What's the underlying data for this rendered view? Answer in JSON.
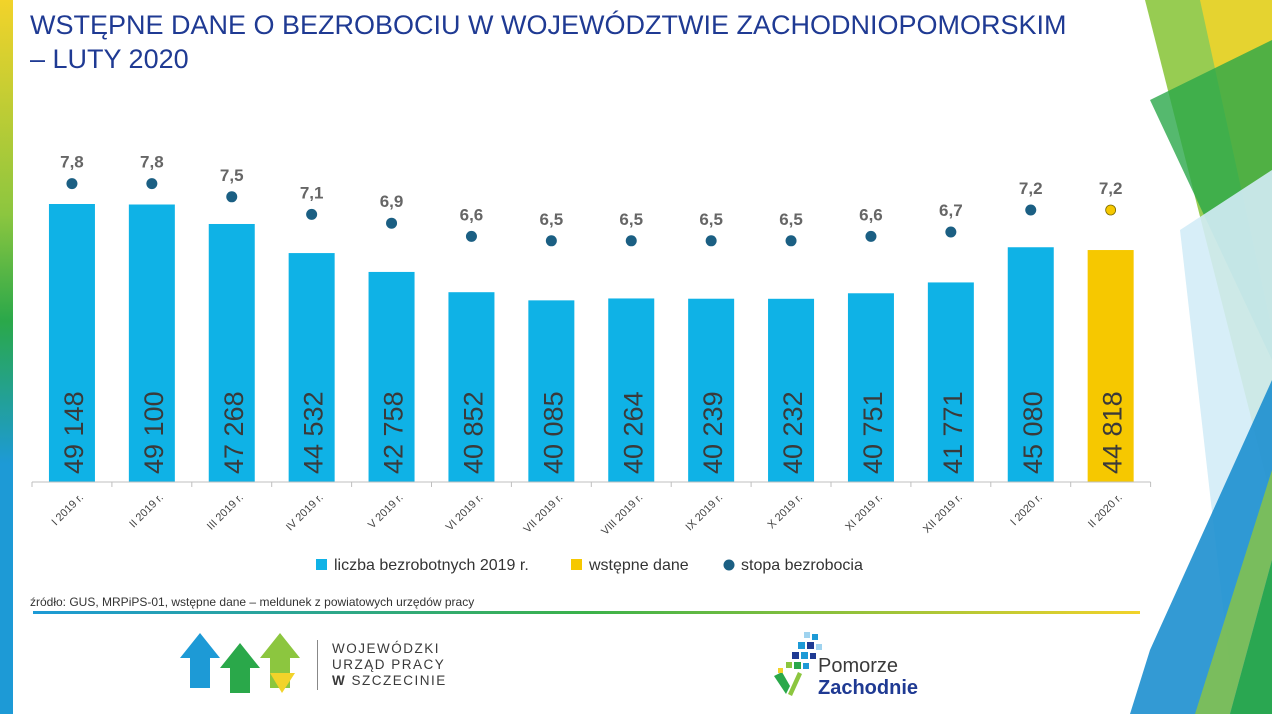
{
  "page": {
    "title_line1": "WSTĘPNE DANE O BEZROBOCIU W WOJEWÓDZTWIE ZACHODNIOPOMORSKIM",
    "title_line2": "– LUTY 2020",
    "source": "źródło: GUS, MRPiPS-01, wstępne dane – meldunek z powiatowych urzędów pracy"
  },
  "logos": {
    "wup_line1": "WOJEWÓDZKI",
    "wup_line2": "URZĄD PRACY",
    "wup_line3_w": "W",
    "wup_line3_rest": "SZCZECINIE",
    "pz_line1": "Pomorze",
    "pz_line2": "Zachodnie"
  },
  "colors": {
    "bar_2019": "#0fb2e6",
    "bar_preliminary": "#f6c800",
    "rate_dot": "#1b5f83",
    "rate_dot_preliminary": "#f6c800",
    "title": "#1f3a93",
    "label_gray": "#666666"
  },
  "chart_data": {
    "type": "bar",
    "categories": [
      "I 2019 r.",
      "II 2019 r.",
      "III 2019 r.",
      "IV 2019 r.",
      "V 2019 r.",
      "VI 2019 r.",
      "VII 2019 r.",
      "VIII 2019 r.",
      "IX 2019 r.",
      "X 2019 r.",
      "XI 2019 r.",
      "XII 2019 r.",
      "I 2020 r.",
      "II 2020 r."
    ],
    "series": [
      {
        "name": "liczba bezrobotnych 2019 r.",
        "kind": "bar",
        "values": [
          49148,
          49100,
          47268,
          44532,
          42758,
          40852,
          40085,
          40264,
          40239,
          40232,
          40751,
          41771,
          45080,
          null
        ]
      },
      {
        "name": "wstępne dane",
        "kind": "bar",
        "values": [
          null,
          null,
          null,
          null,
          null,
          null,
          null,
          null,
          null,
          null,
          null,
          null,
          null,
          44818
        ]
      },
      {
        "name": "stopa bezrobocia",
        "kind": "scatter",
        "values": [
          7.8,
          7.8,
          7.5,
          7.1,
          6.9,
          6.6,
          6.5,
          6.5,
          6.5,
          6.5,
          6.6,
          6.7,
          7.2,
          7.2
        ]
      }
    ],
    "bar_labels": [
      "49 148",
      "49 100",
      "47 268",
      "44 532",
      "42 758",
      "40 852",
      "40 085",
      "40 264",
      "40 239",
      "40 232",
      "40 751",
      "41 771",
      "45 080",
      "44 818"
    ],
    "rate_labels": [
      "7,8",
      "7,8",
      "7,5",
      "7,1",
      "6,9",
      "6,6",
      "6,5",
      "6,5",
      "6,5",
      "6,5",
      "6,6",
      "6,7",
      "7,2",
      "7,2"
    ],
    "legend_position": "bottom",
    "grid": false
  }
}
